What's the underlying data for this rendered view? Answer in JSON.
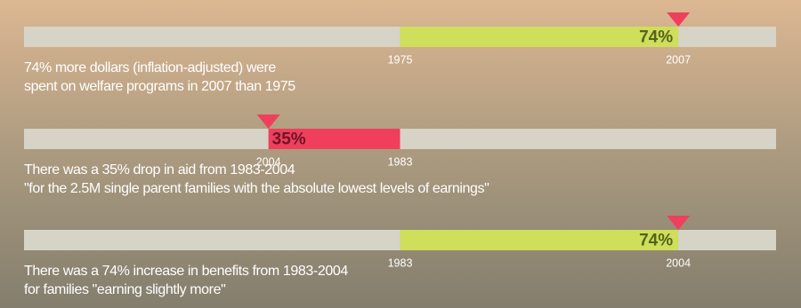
{
  "chart_data": [
    {
      "type": "bar",
      "values": [
        74
      ],
      "value_labels": [
        "74%"
      ],
      "color": "#cfde5b",
      "label_color": "#55631c",
      "track_color": "#d7d3c7",
      "marker_color": "#ef3f5c",
      "xlim": [
        -100,
        100
      ],
      "zero_label": "1975",
      "end_label": "2007",
      "caption": [
        "74% more dollars (inflation-adjusted) were",
        "spent on welfare programs in 2007 than 1975"
      ]
    },
    {
      "type": "bar",
      "values": [
        -35
      ],
      "value_labels": [
        "35%"
      ],
      "color": "#ef3f5c",
      "label_color": "#6e1428",
      "track_color": "#d7d3c7",
      "marker_color": "#ef3f5c",
      "xlim": [
        -100,
        100
      ],
      "zero_label": "1983",
      "end_label": "2004",
      "caption": [
        "There was a 35% drop in aid from 1983-2004",
        "\"for the 2.5M single parent families with the absolute lowest levels of earnings\""
      ]
    },
    {
      "type": "bar",
      "values": [
        74
      ],
      "value_labels": [
        "74%"
      ],
      "color": "#cfde5b",
      "label_color": "#55631c",
      "track_color": "#d7d3c7",
      "marker_color": "#ef3f5c",
      "xlim": [
        -100,
        100
      ],
      "zero_label": "1983",
      "end_label": "2004",
      "caption": [
        "There was a 74% increase in benefits from 1983-2004",
        "for families \"earning slightly more\""
      ]
    }
  ]
}
